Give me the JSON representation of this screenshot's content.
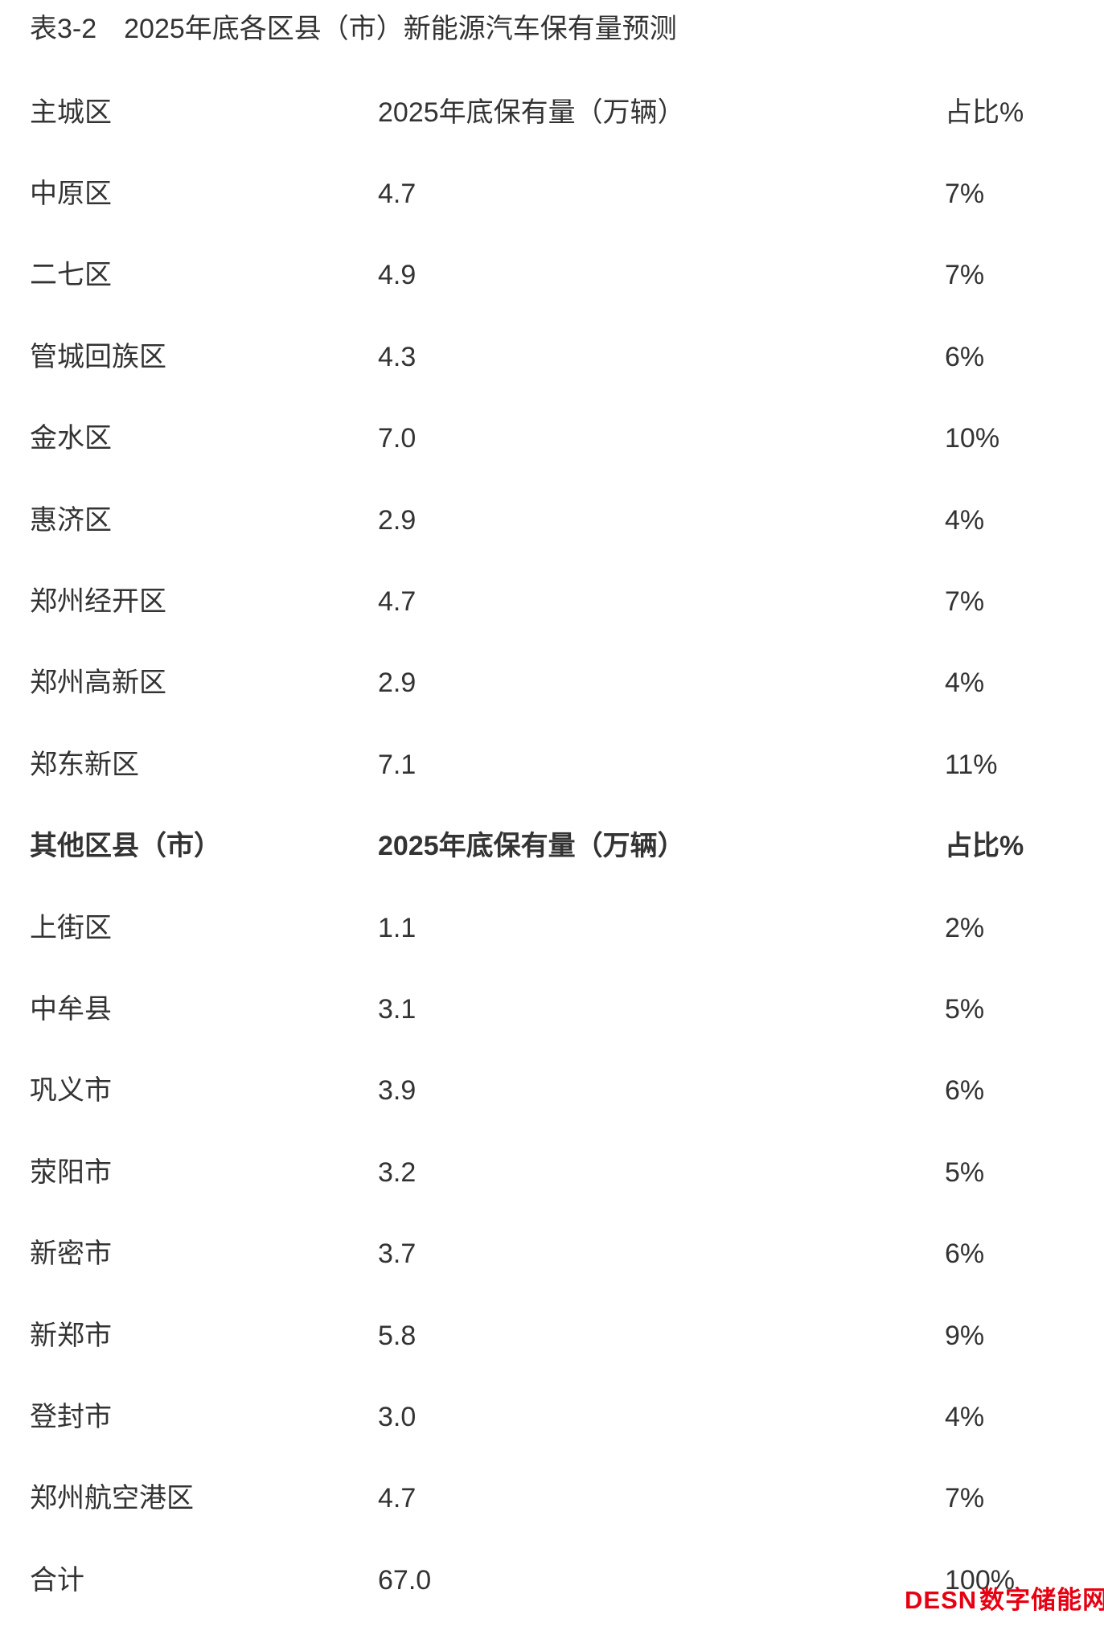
{
  "page": {
    "title": "表3-2　2025年底各区县（市）新能源汽车保有量预测"
  },
  "table": {
    "sections": [
      {
        "bold_header": false,
        "header": {
          "region": "主城区",
          "volume": "2025年底保有量（万辆）",
          "share": "占比%"
        },
        "rows": [
          {
            "region": "中原区",
            "volume": "4.7",
            "share": "7%"
          },
          {
            "region": "二七区",
            "volume": "4.9",
            "share": "7%"
          },
          {
            "region": "管城回族区",
            "volume": "4.3",
            "share": "6%"
          },
          {
            "region": "金水区",
            "volume": "7.0",
            "share": "10%"
          },
          {
            "region": "惠济区",
            "volume": "2.9",
            "share": "4%"
          },
          {
            "region": "郑州经开区",
            "volume": "4.7",
            "share": "7%"
          },
          {
            "region": "郑州高新区",
            "volume": "2.9",
            "share": "4%"
          },
          {
            "region": "郑东新区",
            "volume": "7.1",
            "share": "11%"
          }
        ]
      },
      {
        "bold_header": true,
        "header": {
          "region": "其他区县（市）",
          "volume": "2025年底保有量（万辆）",
          "share": "占比%"
        },
        "rows": [
          {
            "region": "上街区",
            "volume": "1.1",
            "share": "2%"
          },
          {
            "region": "中牟县",
            "volume": "3.1",
            "share": "5%"
          },
          {
            "region": "巩义市",
            "volume": "3.9",
            "share": "6%"
          },
          {
            "region": "荥阳市",
            "volume": "3.2",
            "share": "5%"
          },
          {
            "region": "新密市",
            "volume": "3.7",
            "share": "6%"
          },
          {
            "region": "新郑市",
            "volume": "5.8",
            "share": "9%"
          },
          {
            "region": "登封市",
            "volume": "3.0",
            "share": "4%"
          },
          {
            "region": "郑州航空港区",
            "volume": "4.7",
            "share": "7%"
          },
          {
            "region": "合计",
            "volume": "67.0",
            "share": "100%"
          }
        ]
      }
    ]
  },
  "watermark": {
    "brand": "DESN",
    "name": "数字储能网"
  },
  "colors": {
    "text": "#333333",
    "watermark_red": "#e60012",
    "background": "#ffffff"
  }
}
